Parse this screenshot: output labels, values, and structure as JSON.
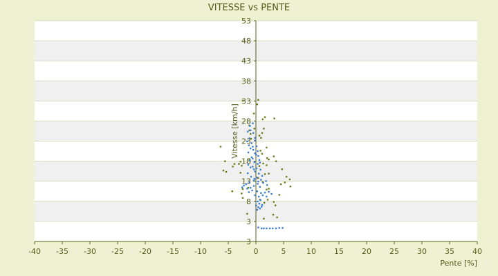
{
  "chart_data": {
    "type": "scatter",
    "title": "VITESSE vs PENTE",
    "xlabel": "Pente [%]",
    "ylabel": "Vitesse [km/h]",
    "xlim": [
      -40,
      40
    ],
    "ylim": [
      3,
      53
    ],
    "xticks": [
      "-40",
      "-35",
      "-30",
      "-25",
      "-20",
      "-15",
      "-10",
      "-5",
      "0",
      "5",
      "10",
      "15",
      "20",
      "25",
      "30",
      "35",
      "40"
    ],
    "yticks": [
      "53",
      "48",
      "43",
      "38",
      "33",
      "28",
      "23",
      "18",
      "13",
      "8",
      "3",
      "3"
    ],
    "grid": true,
    "colors": {
      "blue": "#3b7fd4",
      "olive": "#6b7a1a",
      "background": "#eef2d2",
      "band": "#f0f0f0",
      "axis": "#555c1a"
    },
    "series": [
      {
        "color": "olive",
        "points": [
          [
            -2.4,
            34.9
          ],
          [
            -1.2,
            29.3
          ],
          [
            0.4,
            35.1
          ],
          [
            0.2,
            34.1
          ],
          [
            -0.4,
            32.0
          ],
          [
            1.2,
            30.7
          ],
          [
            1.6,
            31.2
          ],
          [
            3.3,
            30.9
          ],
          [
            -6.4,
            24.5
          ],
          [
            -5.6,
            21.2
          ],
          [
            -5.9,
            19.1
          ],
          [
            -5.4,
            18.8
          ],
          [
            -4.2,
            20.0
          ],
          [
            -3.9,
            20.6
          ],
          [
            -3.1,
            20.6
          ],
          [
            -2.8,
            21.1
          ],
          [
            -2.6,
            20.2
          ],
          [
            -2.8,
            18.6
          ],
          [
            -4.3,
            14.4
          ],
          [
            -2.4,
            14.9
          ],
          [
            -2.6,
            13.9
          ],
          [
            -2.4,
            12.9
          ],
          [
            -1.4,
            15.2
          ],
          [
            -1.2,
            21.7
          ],
          [
            -0.9,
            26.3
          ],
          [
            -1.0,
            27.4
          ],
          [
            -1.2,
            28.2
          ],
          [
            -0.3,
            28.6
          ],
          [
            0.6,
            27.0
          ],
          [
            0.9,
            26.5
          ],
          [
            1.4,
            28.6
          ],
          [
            1.1,
            27.6
          ],
          [
            0.8,
            23.6
          ],
          [
            1.1,
            22.9
          ],
          [
            1.9,
            24.3
          ],
          [
            2.3,
            21.6
          ],
          [
            1.3,
            20.7
          ],
          [
            2.0,
            21.9
          ],
          [
            1.9,
            20.3
          ],
          [
            2.3,
            18.4
          ],
          [
            3.2,
            22.3
          ],
          [
            3.6,
            21.2
          ],
          [
            4.7,
            19.4
          ],
          [
            5.5,
            17.7
          ],
          [
            5.2,
            16.4
          ],
          [
            6.1,
            17.1
          ],
          [
            6.2,
            15.5
          ],
          [
            4.5,
            16.0
          ],
          [
            4.2,
            13.6
          ],
          [
            2.1,
            12.5
          ],
          [
            3.2,
            12.0
          ],
          [
            3.5,
            11.2
          ],
          [
            3.1,
            9.1
          ],
          [
            3.8,
            8.5
          ],
          [
            1.4,
            8.2
          ],
          [
            -1.6,
            9.3
          ],
          [
            1.9,
            14.8
          ],
          [
            0.4,
            17.4
          ],
          [
            1.2,
            16.5
          ],
          [
            2.3,
            15.0
          ],
          [
            0.7,
            12.5
          ],
          [
            1.5,
            11.8
          ],
          [
            0.6,
            20.1
          ],
          [
            1.6,
            18.3
          ]
        ]
      },
      {
        "color": "blue",
        "points": [
          [
            -1.5,
            27.9
          ],
          [
            -1.0,
            28.2
          ],
          [
            -0.5,
            27.6
          ],
          [
            -1.2,
            26.4
          ],
          [
            -1.6,
            25.7
          ],
          [
            -0.8,
            25.3
          ],
          [
            -0.2,
            25.9
          ],
          [
            0.1,
            24.6
          ],
          [
            -1.0,
            24.1
          ],
          [
            -0.5,
            23.8
          ],
          [
            -1.4,
            23.2
          ],
          [
            -0.2,
            23.0
          ],
          [
            0.4,
            22.4
          ],
          [
            -0.8,
            22.1
          ],
          [
            -1.1,
            21.4
          ],
          [
            -0.3,
            21.0
          ],
          [
            0.3,
            20.6
          ],
          [
            -0.6,
            20.0
          ],
          [
            0.1,
            19.6
          ],
          [
            0.8,
            19.3
          ],
          [
            -0.2,
            18.9
          ],
          [
            0.5,
            18.4
          ],
          [
            1.1,
            17.9
          ],
          [
            0.2,
            17.5
          ],
          [
            0.9,
            17.0
          ],
          [
            -0.4,
            16.8
          ],
          [
            -1.2,
            16.4
          ],
          [
            -1.8,
            16.0
          ],
          [
            -2.2,
            15.7
          ],
          [
            -2.5,
            15.3
          ],
          [
            -1.6,
            15.0
          ],
          [
            -1.0,
            15.2
          ],
          [
            -0.4,
            15.6
          ],
          [
            0.3,
            16.1
          ],
          [
            0.7,
            15.4
          ],
          [
            1.3,
            16.3
          ],
          [
            1.8,
            16.7
          ],
          [
            2.0,
            15.8
          ],
          [
            -0.7,
            14.6
          ],
          [
            -1.3,
            14.2
          ],
          [
            0.2,
            14.4
          ],
          [
            0.9,
            14.0
          ],
          [
            1.6,
            14.1
          ],
          [
            2.3,
            14.3
          ],
          [
            2.8,
            13.8
          ],
          [
            -0.2,
            13.5
          ],
          [
            0.5,
            13.2
          ],
          [
            1.2,
            13.5
          ],
          [
            1.9,
            13.2
          ],
          [
            -0.4,
            19.4
          ],
          [
            -1.0,
            19.8
          ],
          [
            -0.6,
            21.8
          ],
          [
            -1.4,
            20.4
          ],
          [
            0.0,
            22.7
          ],
          [
            0.6,
            21.5
          ],
          [
            -0.9,
            17.7
          ],
          [
            -0.3,
            17.2
          ],
          [
            0.4,
            16.6
          ],
          [
            -1.5,
            18.5
          ],
          [
            0.7,
            20.9
          ],
          [
            -0.2,
            26.5
          ],
          [
            -1.3,
            24.8
          ],
          [
            0.3,
            23.5
          ],
          [
            -0.6,
            24.5
          ],
          [
            0.0,
            11.2
          ],
          [
            0.4,
            10.8
          ],
          [
            0.7,
            10.5
          ],
          [
            1.0,
            10.9
          ],
          [
            0.2,
            10.2
          ],
          [
            0.6,
            11.6
          ],
          [
            1.1,
            11.3
          ],
          [
            0.3,
            12.1
          ],
          [
            0.8,
            12.4
          ],
          [
            1.0,
            6.0
          ],
          [
            1.4,
            6.0
          ],
          [
            1.9,
            6.0
          ],
          [
            2.5,
            6.0
          ],
          [
            3.0,
            6.0
          ],
          [
            3.6,
            6.0
          ],
          [
            4.2,
            6.1
          ],
          [
            4.8,
            6.1
          ],
          [
            0.4,
            6.2
          ],
          [
            -0.6,
            29.8
          ],
          [
            -1.1,
            29.2
          ]
        ]
      }
    ]
  }
}
